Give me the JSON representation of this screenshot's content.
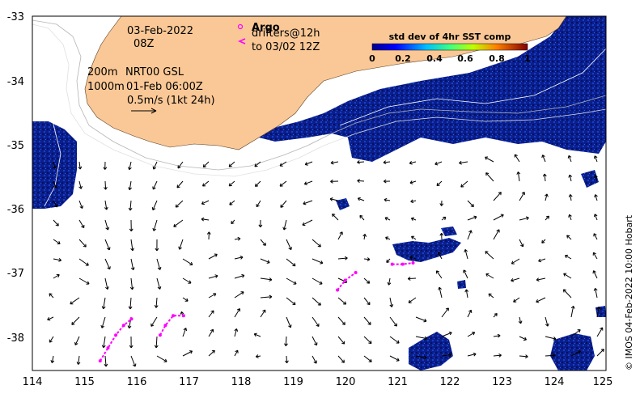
{
  "map": {
    "x_ticks": [
      "114",
      "115",
      "116",
      "117",
      "118",
      "119",
      "120",
      "121",
      "122",
      "123",
      "124",
      "125"
    ],
    "y_ticks": [
      "-33",
      "-34",
      "-35",
      "-36",
      "-37",
      "-38"
    ],
    "x_range": [
      114,
      125
    ],
    "y_range": [
      -33,
      -38.5
    ]
  },
  "annotations": {
    "date": "03-Feb-2022",
    "hour": "08Z",
    "depth_200": "200m",
    "depth_1000": "1000m",
    "source": "NRT00 GSL",
    "source_time": "01-Feb 06:00Z",
    "scale_text": "0.5m/s (1kt 24h)"
  },
  "legend": {
    "argo_label": "Argo",
    "drifters_label": "drifters@12h",
    "drifters_until": "to 03/02 12Z",
    "argo_color": "#ff00ff"
  },
  "colorbar": {
    "title": "std dev of 4hr SST comp",
    "ticks": [
      "0",
      "0.2",
      "0.4",
      "0.6",
      "0.8",
      "1"
    ]
  },
  "credit": "© IMOS 04-Feb-2022 10:00 Hobart",
  "colors": {
    "land": "#fac896",
    "sst": "#0a1e8c",
    "drifter": "#ff00ff"
  },
  "drifter_tracks": [
    [
      [
        115.3,
        -38.35
      ],
      [
        115.45,
        -38.15
      ],
      [
        115.6,
        -37.95
      ],
      [
        115.75,
        -37.8
      ],
      [
        115.9,
        -37.7
      ]
    ],
    [
      [
        116.45,
        -37.95
      ],
      [
        116.55,
        -37.8
      ],
      [
        116.7,
        -37.65
      ],
      [
        116.9,
        -37.65
      ]
    ],
    [
      [
        119.85,
        -37.25
      ],
      [
        120.0,
        -37.1
      ],
      [
        120.2,
        -36.98
      ]
    ],
    [
      [
        120.9,
        -36.85
      ],
      [
        121.1,
        -36.85
      ],
      [
        121.3,
        -36.83
      ]
    ]
  ]
}
